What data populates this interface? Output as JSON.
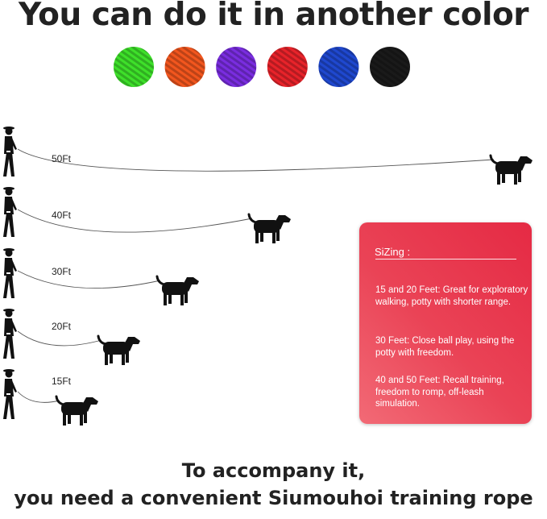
{
  "title": "You can do it in another color",
  "colors": [
    {
      "name": "green",
      "hex": "#3ee02a"
    },
    {
      "name": "orange",
      "hex": "#f2561e"
    },
    {
      "name": "purple",
      "hex": "#7a2de0"
    },
    {
      "name": "red",
      "hex": "#e8232a"
    },
    {
      "name": "blue",
      "hex": "#1f48cf"
    },
    {
      "name": "black",
      "hex": "#1a1a1a"
    }
  ],
  "lengths": [
    {
      "label": "50Ft"
    },
    {
      "label": "40Ft"
    },
    {
      "label": "30Ft"
    },
    {
      "label": "20Ft"
    },
    {
      "label": "15Ft"
    }
  ],
  "sizing": {
    "heading": "SiZing :",
    "items": [
      "15 and 20 Feet: Great for exploratory walking, potty with shorter range.",
      "30 Feet: Close ball play, using the potty with freedom.",
      "40 and 50 Feet: Recall training, freedom to romp, off-leash simulation."
    ]
  },
  "footer": {
    "line1": "To accompany it,",
    "line2": "you need a convenient Siumouhoi training rope"
  }
}
